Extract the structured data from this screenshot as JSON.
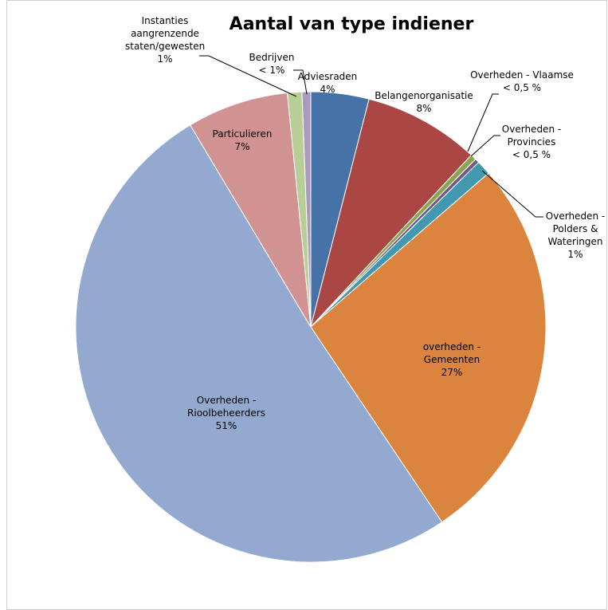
{
  "chart_data": {
    "type": "pie",
    "title": "Aantal van type indiener",
    "categories": [
      "Adviesraden",
      "Belangenorganisatie",
      "Overheden - Vlaamse",
      "Overheden - Provincies",
      "Overheden - Polders & Wateringen",
      "overheden - Gemeenten",
      "Overheden - Rioolbeheerders",
      "Particulieren",
      "Instanties aangrenzende staten/gewesten",
      "Bedrijven"
    ],
    "values": [
      4,
      8,
      0.4,
      0.3,
      1,
      27,
      51,
      7,
      1,
      0.6
    ],
    "value_labels": [
      "4%",
      "8%",
      "< 0,5 %",
      "< 0,5 %",
      "1%",
      "27%",
      "51%",
      "7%",
      "1%",
      "< 1%"
    ],
    "colors": [
      "#4572a7",
      "#aa4643",
      "#89a54e",
      "#71588f",
      "#4198af",
      "#db843d",
      "#93a9cf",
      "#d19392",
      "#b9cd96",
      "#a99bbd"
    ]
  }
}
